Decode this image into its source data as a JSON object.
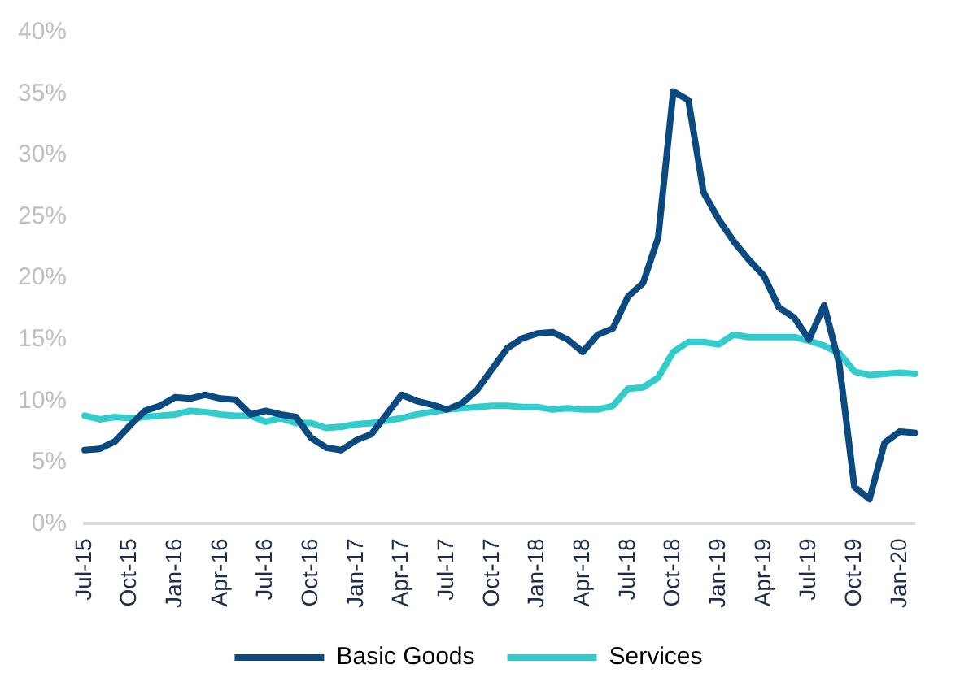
{
  "chart_data": {
    "type": "line",
    "categories": [
      "Jul-15",
      null,
      null,
      "Oct-15",
      null,
      null,
      "Jan-16",
      null,
      null,
      "Apr-16",
      null,
      null,
      "Jul-16",
      null,
      null,
      "Oct-16",
      null,
      null,
      "Jan-17",
      null,
      null,
      "Apr-17",
      null,
      null,
      "Jul-17",
      null,
      null,
      "Oct-17",
      null,
      null,
      "Jan-18",
      null,
      null,
      "Apr-18",
      null,
      null,
      "Jul-18",
      null,
      null,
      "Oct-18",
      null,
      null,
      "Jan-19",
      null,
      null,
      "Apr-19",
      null,
      null,
      "Jul-19",
      null,
      null,
      "Oct-19",
      null,
      null,
      "Jan-20",
      null
    ],
    "series": [
      {
        "name": "Basic Goods",
        "color": "#0b4a80",
        "values": [
          6.0,
          6.1,
          6.7,
          8.0,
          9.2,
          9.6,
          10.3,
          10.2,
          10.5,
          10.2,
          10.1,
          8.9,
          9.2,
          8.9,
          8.7,
          7.0,
          6.2,
          6.0,
          6.8,
          7.3,
          8.9,
          10.5,
          10.0,
          9.7,
          9.3,
          9.8,
          10.9,
          12.6,
          14.3,
          15.1,
          15.5,
          15.6,
          15.0,
          14.0,
          15.4,
          15.9,
          18.5,
          19.6,
          23.3,
          35.2,
          34.5,
          27.0,
          24.8,
          23.0,
          21.5,
          20.2,
          17.6,
          16.8,
          15.0,
          17.8,
          13.0,
          3.0,
          2.0,
          6.6,
          7.5,
          7.4
        ]
      },
      {
        "name": "Services",
        "color": "#33cccc",
        "values": [
          8.8,
          8.5,
          8.7,
          8.6,
          8.7,
          8.8,
          8.9,
          9.2,
          9.1,
          8.9,
          8.8,
          8.8,
          8.3,
          8.6,
          8.2,
          8.2,
          7.8,
          7.9,
          8.1,
          8.2,
          8.4,
          8.6,
          8.9,
          9.1,
          9.3,
          9.4,
          9.5,
          9.6,
          9.6,
          9.5,
          9.5,
          9.3,
          9.4,
          9.3,
          9.3,
          9.6,
          11.0,
          11.1,
          11.9,
          14.0,
          14.8,
          14.8,
          14.6,
          15.4,
          15.2,
          15.2,
          15.2,
          15.2,
          14.9,
          14.5,
          13.9,
          12.4,
          12.1,
          12.2,
          12.3,
          12.2
        ]
      }
    ],
    "ylim": [
      0,
      40
    ],
    "yticks": [
      {
        "value": 0,
        "label": "0%"
      },
      {
        "value": 5,
        "label": "5%"
      },
      {
        "value": 10,
        "label": "10%"
      },
      {
        "value": 15,
        "label": "15%"
      },
      {
        "value": 20,
        "label": "20%"
      },
      {
        "value": 25,
        "label": "25%"
      },
      {
        "value": 30,
        "label": "30%"
      },
      {
        "value": 35,
        "label": "35%"
      },
      {
        "value": 40,
        "label": "40%"
      }
    ],
    "grid": false,
    "legend": "bottom",
    "marker": "none",
    "line_style": "solid"
  }
}
